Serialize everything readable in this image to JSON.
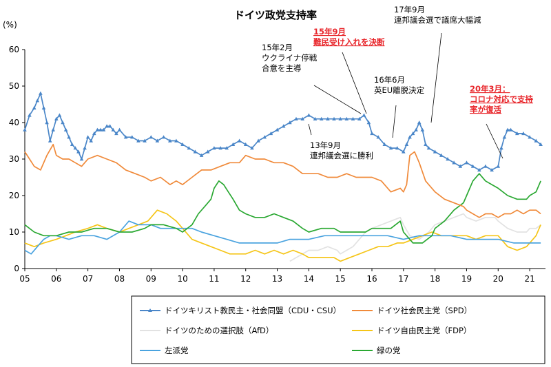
{
  "chart_data": {
    "type": "line",
    "title": "ドイツ政党支持率",
    "ylabel": "(%)",
    "xlabel": "",
    "ylim": [
      0,
      60
    ],
    "xlim": [
      2005.0,
      2021.5
    ],
    "yticks": [
      "0",
      "10",
      "20",
      "30",
      "40",
      "50",
      "60"
    ],
    "xticks": [
      "05",
      "06",
      "07",
      "08",
      "09",
      "10",
      "11",
      "12",
      "13",
      "14",
      "15",
      "16",
      "17",
      "18",
      "19",
      "20",
      "21"
    ],
    "grid": false,
    "legend_position": "bottom",
    "series": [
      {
        "name": "ドイツキリスト教民主・社会同盟（CDU・CSU）",
        "color": "#4a86c8",
        "marker": "triangle",
        "x": [
          2005.0,
          2005.15,
          2005.3,
          2005.4,
          2005.5,
          2005.6,
          2005.7,
          2005.8,
          2005.9,
          2006.0,
          2006.1,
          2006.2,
          2006.3,
          2006.4,
          2006.5,
          2006.6,
          2006.7,
          2006.8,
          2006.9,
          2007.0,
          2007.1,
          2007.2,
          2007.3,
          2007.4,
          2007.5,
          2007.6,
          2007.7,
          2007.8,
          2007.9,
          2008.0,
          2008.2,
          2008.4,
          2008.6,
          2008.8,
          2009.0,
          2009.2,
          2009.4,
          2009.6,
          2009.8,
          2010.0,
          2010.2,
          2010.4,
          2010.6,
          2010.8,
          2011.0,
          2011.2,
          2011.4,
          2011.6,
          2011.8,
          2012.0,
          2012.2,
          2012.4,
          2012.6,
          2012.8,
          2013.0,
          2013.2,
          2013.4,
          2013.6,
          2013.8,
          2014.0,
          2014.2,
          2014.4,
          2014.6,
          2014.8,
          2015.0,
          2015.2,
          2015.4,
          2015.6,
          2015.75,
          2015.9,
          2016.0,
          2016.2,
          2016.4,
          2016.6,
          2016.8,
          2017.0,
          2017.1,
          2017.2,
          2017.3,
          2017.4,
          2017.5,
          2017.6,
          2017.7,
          2017.8,
          2018.0,
          2018.2,
          2018.4,
          2018.6,
          2018.8,
          2019.0,
          2019.2,
          2019.4,
          2019.6,
          2019.8,
          2020.0,
          2020.1,
          2020.2,
          2020.3,
          2020.4,
          2020.6,
          2020.8,
          2021.0,
          2021.2,
          2021.35
        ],
        "values": [
          38,
          42,
          44,
          46,
          48,
          44,
          40,
          35,
          38,
          41,
          42,
          40,
          38,
          36,
          34,
          33,
          32,
          30,
          33,
          36,
          35,
          37,
          38,
          38,
          38,
          39,
          39,
          38,
          37,
          38,
          36,
          36,
          35,
          35,
          36,
          35,
          36,
          35,
          35,
          34,
          33,
          32,
          31,
          32,
          33,
          33,
          33,
          34,
          35,
          34,
          33,
          35,
          36,
          37,
          38,
          39,
          40,
          41,
          41,
          42,
          41,
          41,
          41,
          41,
          41,
          41,
          41,
          41,
          42,
          40,
          37,
          36,
          34,
          33,
          33,
          32,
          34,
          36,
          37,
          38,
          40,
          38,
          34,
          33,
          32,
          31,
          30,
          29,
          28,
          29,
          28,
          27,
          28,
          27,
          28,
          33,
          36,
          38,
          38,
          37,
          37,
          36,
          35,
          34
        ]
      },
      {
        "name": "ドイツ社会民主党（SPD）",
        "color": "#f08a3a",
        "marker": "none",
        "x": [
          2005.0,
          2005.15,
          2005.3,
          2005.5,
          2005.7,
          2005.9,
          2006.0,
          2006.2,
          2006.4,
          2006.6,
          2006.8,
          2007.0,
          2007.3,
          2007.6,
          2007.9,
          2008.2,
          2008.5,
          2008.8,
          2009.0,
          2009.3,
          2009.6,
          2009.8,
          2010.0,
          2010.3,
          2010.6,
          2010.9,
          2011.2,
          2011.5,
          2011.8,
          2012.0,
          2012.3,
          2012.6,
          2012.9,
          2013.2,
          2013.5,
          2013.8,
          2014.0,
          2014.3,
          2014.6,
          2014.9,
          2015.2,
          2015.5,
          2015.8,
          2016.0,
          2016.3,
          2016.6,
          2016.9,
          2017.0,
          2017.1,
          2017.2,
          2017.35,
          2017.5,
          2017.7,
          2018.0,
          2018.3,
          2018.6,
          2018.9,
          2019.0,
          2019.2,
          2019.4,
          2019.6,
          2019.8,
          2020.0,
          2020.2,
          2020.4,
          2020.6,
          2020.8,
          2021.0,
          2021.2,
          2021.35
        ],
        "values": [
          32,
          30,
          28,
          27,
          31,
          34,
          31,
          30,
          30,
          29,
          28,
          30,
          31,
          30,
          29,
          27,
          26,
          25,
          24,
          25,
          23,
          24,
          23,
          25,
          27,
          27,
          28,
          29,
          29,
          31,
          30,
          30,
          29,
          29,
          28,
          26,
          26,
          26,
          25,
          25,
          26,
          25,
          25,
          25,
          24,
          21,
          22,
          21,
          23,
          31,
          32,
          29,
          24,
          21,
          19,
          18,
          17,
          16,
          15,
          14,
          15,
          15,
          14,
          15,
          15,
          16,
          15,
          16,
          16,
          15
        ]
      },
      {
        "name": "ドイツのための選択肢（AfD）",
        "color": "#e2e2e2",
        "marker": "none",
        "x": [
          2013.4,
          2013.6,
          2013.8,
          2014.0,
          2014.3,
          2014.6,
          2014.9,
          2015.0,
          2015.2,
          2015.4,
          2015.6,
          2015.8,
          2016.0,
          2016.3,
          2016.6,
          2016.9,
          2017.0,
          2017.2,
          2017.5,
          2017.8,
          2018.0,
          2018.3,
          2018.6,
          2018.9,
          2019.0,
          2019.3,
          2019.6,
          2019.9,
          2020.0,
          2020.3,
          2020.6,
          2020.9,
          2021.0,
          2021.2,
          2021.35
        ],
        "values": [
          2,
          3,
          4,
          5,
          5,
          6,
          5,
          4,
          5,
          6,
          8,
          10,
          11,
          12,
          13,
          14,
          12,
          9,
          8,
          10,
          12,
          13,
          14,
          15,
          14,
          13,
          14,
          14,
          13,
          11,
          10,
          10,
          11,
          11,
          12
        ]
      },
      {
        "name": "ドイツ自由民主党（FDP）",
        "color": "#f5c518",
        "marker": "none",
        "x": [
          2005.0,
          2005.3,
          2005.6,
          2006.0,
          2006.3,
          2006.6,
          2007.0,
          2007.3,
          2007.6,
          2008.0,
          2008.3,
          2008.6,
          2008.9,
          2009.0,
          2009.2,
          2009.5,
          2009.8,
          2010.0,
          2010.3,
          2010.6,
          2010.9,
          2011.2,
          2011.5,
          2011.8,
          2012.0,
          2012.3,
          2012.6,
          2012.9,
          2013.2,
          2013.5,
          2013.8,
          2014.0,
          2014.4,
          2014.8,
          2015.0,
          2015.3,
          2015.6,
          2015.9,
          2016.2,
          2016.5,
          2016.8,
          2017.0,
          2017.3,
          2017.6,
          2017.9,
          2018.2,
          2018.5,
          2018.8,
          2019.0,
          2019.3,
          2019.6,
          2019.9,
          2020.0,
          2020.3,
          2020.6,
          2020.9,
          2021.0,
          2021.2,
          2021.35
        ],
        "values": [
          7,
          6,
          7,
          8,
          9,
          10,
          11,
          12,
          11,
          10,
          11,
          12,
          13,
          14,
          16,
          15,
          13,
          11,
          8,
          7,
          6,
          5,
          4,
          4,
          4,
          5,
          4,
          5,
          4,
          5,
          4,
          3,
          3,
          3,
          2,
          3,
          4,
          5,
          6,
          6,
          7,
          7,
          8,
          9,
          10,
          9,
          9,
          9,
          9,
          8,
          9,
          9,
          9,
          6,
          5,
          6,
          7,
          9,
          12
        ]
      },
      {
        "name": "左派党",
        "color": "#4aa3df",
        "marker": "none",
        "x": [
          2005.0,
          2005.2,
          2005.4,
          2005.6,
          2005.8,
          2006.0,
          2006.4,
          2006.8,
          2007.2,
          2007.6,
          2008.0,
          2008.3,
          2008.6,
          2009.0,
          2009.3,
          2009.6,
          2010.0,
          2010.3,
          2010.6,
          2011.0,
          2011.4,
          2011.8,
          2012.0,
          2012.3,
          2012.6,
          2013.0,
          2013.4,
          2013.8,
          2014.0,
          2014.5,
          2015.0,
          2015.5,
          2016.0,
          2016.5,
          2017.0,
          2017.5,
          2018.0,
          2018.5,
          2019.0,
          2019.5,
          2020.0,
          2020.5,
          2021.0,
          2021.35
        ],
        "values": [
          5,
          4,
          6,
          8,
          9,
          9,
          8,
          9,
          9,
          8,
          10,
          13,
          12,
          12,
          11,
          11,
          11,
          11,
          10,
          9,
          8,
          7,
          7,
          7,
          7,
          7,
          8,
          8,
          8,
          9,
          9,
          9,
          9,
          9,
          8,
          9,
          9,
          9,
          8,
          8,
          8,
          7,
          7,
          7
        ]
      },
      {
        "name": "緑の党",
        "color": "#2aa832",
        "marker": "none",
        "x": [
          2005.0,
          2005.3,
          2005.6,
          2006.0,
          2006.4,
          2006.8,
          2007.2,
          2007.6,
          2008.0,
          2008.4,
          2008.8,
          2009.0,
          2009.4,
          2009.8,
          2010.0,
          2010.3,
          2010.5,
          2010.7,
          2010.9,
          2011.0,
          2011.15,
          2011.3,
          2011.45,
          2011.6,
          2011.8,
          2012.0,
          2012.3,
          2012.6,
          2012.9,
          2013.2,
          2013.5,
          2013.8,
          2014.0,
          2014.4,
          2014.8,
          2015.0,
          2015.4,
          2015.8,
          2016.0,
          2016.3,
          2016.6,
          2016.9,
          2017.0,
          2017.3,
          2017.6,
          2017.9,
          2018.0,
          2018.3,
          2018.6,
          2018.9,
          2019.0,
          2019.2,
          2019.4,
          2019.6,
          2019.8,
          2020.0,
          2020.3,
          2020.6,
          2020.9,
          2021.0,
          2021.2,
          2021.35
        ],
        "values": [
          12,
          10,
          9,
          9,
          10,
          10,
          11,
          11,
          10,
          10,
          11,
          12,
          12,
          11,
          10,
          12,
          15,
          17,
          19,
          22,
          24,
          23,
          21,
          19,
          16,
          15,
          14,
          14,
          15,
          14,
          13,
          11,
          10,
          11,
          11,
          10,
          10,
          10,
          11,
          11,
          11,
          13,
          10,
          7,
          7,
          9,
          11,
          13,
          16,
          18,
          20,
          24,
          26,
          24,
          23,
          22,
          20,
          19,
          19,
          20,
          21,
          24
        ]
      }
    ],
    "annotations": [
      {
        "id": "ann-13-9",
        "lines": [
          "13年9月",
          "連邦議会選に勝利"
        ],
        "x": 2013.7,
        "highlight": false
      },
      {
        "id": "ann-15-2",
        "lines": [
          "15年2月",
          "ウクライナ停戦",
          "合意を主導"
        ],
        "x": 2015.1,
        "highlight": false
      },
      {
        "id": "ann-15-9",
        "lines": [
          "15年9月",
          "難民受け入れを決断"
        ],
        "x": 2015.7,
        "highlight": true
      },
      {
        "id": "ann-16-6",
        "lines": [
          "16年6月",
          "英EU離脱決定"
        ],
        "x": 2016.5,
        "highlight": false
      },
      {
        "id": "ann-17-9",
        "lines": [
          "17年9月",
          "連邦議会選で議席大幅減"
        ],
        "x": 2017.7,
        "highlight": false
      },
      {
        "id": "ann-20-3",
        "lines": [
          "20年3月：",
          "コロナ対応で支持",
          "率が復活"
        ],
        "x": 2020.2,
        "highlight": true
      }
    ]
  }
}
